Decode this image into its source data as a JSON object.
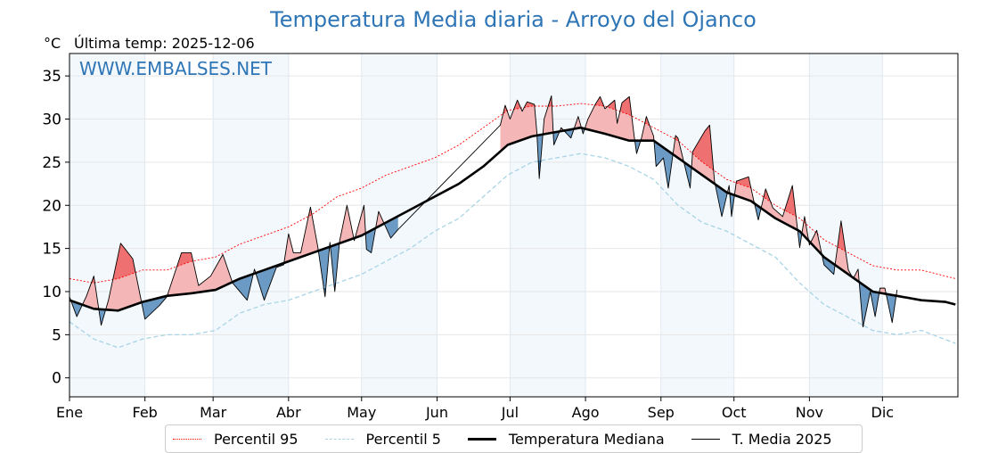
{
  "title": "Temperatura Media diaria - Arroyo del Ojanco",
  "unit": "°C",
  "last_temp": "Última temp: 2025-12-06",
  "watermark": "WWW.EMBALSES.NET",
  "colors": {
    "title": "#2e75b6",
    "p95": "#ff0000",
    "p5": "#a8d4e6",
    "median": "#000000",
    "above": "#f4b6b6",
    "above_extreme": "#ee7070",
    "below": "#6b9bc4",
    "below_extreme": "#2d6aa0",
    "band": "#f3f8fc"
  },
  "chart_data": {
    "type": "line",
    "title": "Temperatura Media diaria - Arroyo del Ojanco",
    "ylabel": "°C",
    "xlabel": "",
    "ylim": [
      -2.2,
      37.6
    ],
    "xlim": [
      0,
      365
    ],
    "grid": true,
    "legend_position": "bottom-center",
    "y_ticks": [
      0,
      5,
      10,
      15,
      20,
      25,
      30,
      35
    ],
    "x_ticks": [
      {
        "day": 0,
        "label": "Ene"
      },
      {
        "day": 31,
        "label": "Feb"
      },
      {
        "day": 59,
        "label": "Mar"
      },
      {
        "day": 90,
        "label": "Abr"
      },
      {
        "day": 120,
        "label": "May"
      },
      {
        "day": 151,
        "label": "Jun"
      },
      {
        "day": 181,
        "label": "Jul"
      },
      {
        "day": 212,
        "label": "Ago"
      },
      {
        "day": 243,
        "label": "Sep"
      },
      {
        "day": 273,
        "label": "Oct"
      },
      {
        "day": 304,
        "label": "Nov"
      },
      {
        "day": 334,
        "label": "Dic"
      }
    ],
    "legend": [
      "Percentil 95",
      "Percentil 5",
      "Temperatura Mediana",
      "T. Media 2025"
    ],
    "series": [
      {
        "name": "Percentil 95",
        "x": [
          0,
          10,
          20,
          30,
          40,
          50,
          60,
          70,
          80,
          90,
          100,
          110,
          120,
          130,
          140,
          150,
          160,
          170,
          180,
          190,
          200,
          210,
          220,
          230,
          240,
          250,
          260,
          270,
          280,
          290,
          300,
          310,
          320,
          330,
          340,
          350,
          364
        ],
        "values": [
          11.5,
          11,
          11.5,
          12.5,
          12.5,
          13.5,
          14,
          15.5,
          16.5,
          17.5,
          19,
          21,
          22,
          23.5,
          24.5,
          25.5,
          27,
          29,
          31,
          31.5,
          31.5,
          31.8,
          31.5,
          30.5,
          29,
          27.5,
          25,
          23,
          22,
          20,
          18.5,
          16,
          14.5,
          13,
          12.5,
          12.5,
          11.5
        ]
      },
      {
        "name": "Percentil 5",
        "x": [
          0,
          10,
          20,
          30,
          40,
          50,
          60,
          70,
          80,
          90,
          100,
          110,
          120,
          130,
          140,
          150,
          160,
          170,
          180,
          190,
          200,
          210,
          220,
          230,
          240,
          250,
          260,
          270,
          280,
          290,
          300,
          310,
          320,
          330,
          340,
          350,
          364
        ],
        "values": [
          6.5,
          4.5,
          3.5,
          4.5,
          5,
          5,
          5.5,
          7.5,
          8.5,
          9,
          10,
          11,
          12,
          13.5,
          15,
          17,
          18.5,
          21,
          23.5,
          25,
          25.5,
          26,
          25.5,
          24.5,
          23,
          20,
          18,
          17,
          15.5,
          14,
          11,
          8.5,
          7,
          5.5,
          5,
          5.5,
          4
        ]
      },
      {
        "name": "Temperatura Mediana",
        "x": [
          0,
          10,
          20,
          30,
          40,
          50,
          60,
          70,
          80,
          90,
          100,
          110,
          120,
          130,
          140,
          150,
          160,
          170,
          180,
          190,
          200,
          210,
          220,
          230,
          240,
          250,
          260,
          270,
          280,
          290,
          300,
          310,
          320,
          330,
          340,
          350,
          360,
          364
        ],
        "values": [
          9,
          8,
          7.8,
          8.8,
          9.5,
          9.8,
          10.2,
          11.5,
          12.5,
          13.5,
          14.5,
          15.5,
          16.5,
          18,
          19.5,
          21,
          22.5,
          24.5,
          27,
          28,
          28.5,
          29,
          28.3,
          27.5,
          27.5,
          25.5,
          23.5,
          21.5,
          20.5,
          18.5,
          17,
          14,
          12,
          10,
          9.5,
          9,
          8.8,
          8.5
        ]
      },
      {
        "name": "T. Media 2025",
        "x": [
          0,
          3,
          7,
          10,
          13,
          16,
          21,
          26,
          31,
          37,
          40,
          46,
          50,
          53,
          58,
          63,
          67,
          73,
          76,
          80,
          85,
          88,
          90,
          92,
          95,
          99,
          102,
          105,
          107,
          109,
          111,
          114,
          117,
          121,
          122,
          124,
          127,
          132,
          135,
          177,
          179,
          181,
          184,
          186,
          188,
          191,
          192,
          193,
          195,
          198,
          199,
          202,
          206,
          209,
          211,
          213,
          216,
          218,
          220,
          224,
          225,
          227,
          230,
          232,
          233,
          235,
          237,
          240,
          241,
          244,
          246,
          249,
          250,
          255,
          256,
          261,
          263,
          265,
          268,
          271,
          272,
          274,
          279,
          281,
          283,
          286,
          289,
          293,
          297,
          300,
          302,
          304,
          307,
          310,
          314,
          317,
          320,
          322,
          324,
          326,
          329,
          331,
          333,
          335,
          338,
          340
        ],
        "values": [
          9.4,
          7.1,
          9.5,
          11.8,
          6.1,
          9,
          15.6,
          13.8,
          6.8,
          8.4,
          9.4,
          14.5,
          14.5,
          10.7,
          11.8,
          14.3,
          11,
          9,
          12.6,
          9,
          12.8,
          13.1,
          16.7,
          14.5,
          14.5,
          19.8,
          15.2,
          9.4,
          15.7,
          10,
          15.9,
          20,
          15.9,
          20,
          14.9,
          14.5,
          19.3,
          16.2,
          17.2,
          29.3,
          31.6,
          30,
          32.2,
          30.9,
          32,
          31.7,
          28.5,
          23.1,
          30,
          32.7,
          27,
          29,
          27.8,
          30.3,
          28.3,
          30,
          31.7,
          32.6,
          31.2,
          32.2,
          29.5,
          31.9,
          32.6,
          28,
          26,
          27.8,
          30.3,
          28,
          24.5,
          25.5,
          22,
          28.1,
          27.8,
          22,
          26.2,
          28.6,
          29.3,
          22.8,
          18.7,
          22.3,
          18.7,
          22.8,
          23.3,
          20.7,
          18.3,
          21.9,
          19.7,
          18.7,
          22.3,
          15.1,
          18.7,
          15.4,
          17.1,
          13.1,
          12,
          18.2,
          12.5,
          11.5,
          12.6,
          5.9,
          10,
          7.1,
          10.4,
          10.4,
          6.4,
          10.2
        ]
      }
    ]
  }
}
